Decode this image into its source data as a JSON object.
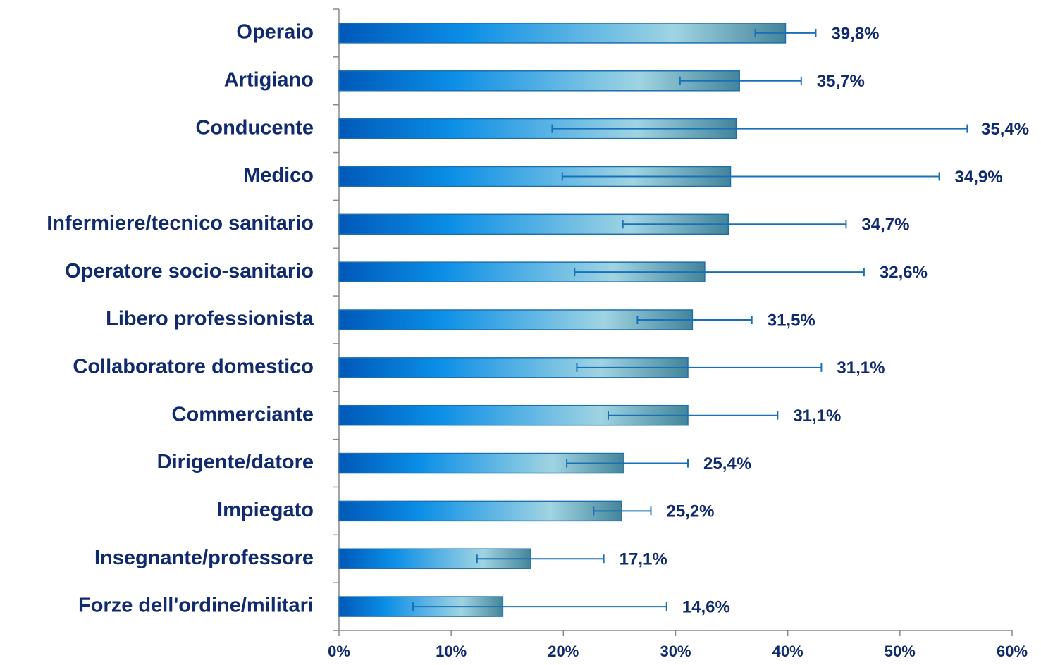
{
  "chart_data": {
    "type": "bar",
    "orientation": "horizontal",
    "categories": [
      "Operaio",
      "Artigiano",
      "Conducente",
      "Medico",
      "Infermiere/tecnico sanitario",
      "Operatore socio-sanitario",
      "Libero professionista",
      "Collaboratore domestico",
      "Commerciante",
      "Dirigente/datore",
      "Impiegato",
      "Insegnante/professore",
      "Forze dell'ordine/militari"
    ],
    "values": [
      39.8,
      35.7,
      35.4,
      34.9,
      34.7,
      32.6,
      31.5,
      31.1,
      31.1,
      25.4,
      25.2,
      17.1,
      14.6
    ],
    "value_labels": [
      "39,8%",
      "35,7%",
      "35,4%",
      "34,9%",
      "34,7%",
      "32,6%",
      "31,5%",
      "31,1%",
      "31,1%",
      "25,4%",
      "25,2%",
      "17,1%",
      "14,6%"
    ],
    "ci_low": [
      37.1,
      30.4,
      19.0,
      19.9,
      25.3,
      21.0,
      26.6,
      21.2,
      24.0,
      20.3,
      22.7,
      12.3,
      6.6
    ],
    "ci_high": [
      42.5,
      41.2,
      56.0,
      53.5,
      45.2,
      46.8,
      36.8,
      43.0,
      39.1,
      31.1,
      27.8,
      23.6,
      29.2
    ],
    "color": "#0a8ee6",
    "error_color": "#1a70b8",
    "xlim": [
      0,
      60
    ],
    "xticks": [
      {
        "value": 0,
        "label": "0%"
      },
      {
        "value": 10,
        "label": "10%"
      },
      {
        "value": 20,
        "label": "20%"
      },
      {
        "value": 30,
        "label": "30%"
      },
      {
        "value": 40,
        "label": "40%"
      },
      {
        "value": 50,
        "label": "50%"
      },
      {
        "value": 60,
        "label": "60%"
      }
    ],
    "grid": false
  }
}
